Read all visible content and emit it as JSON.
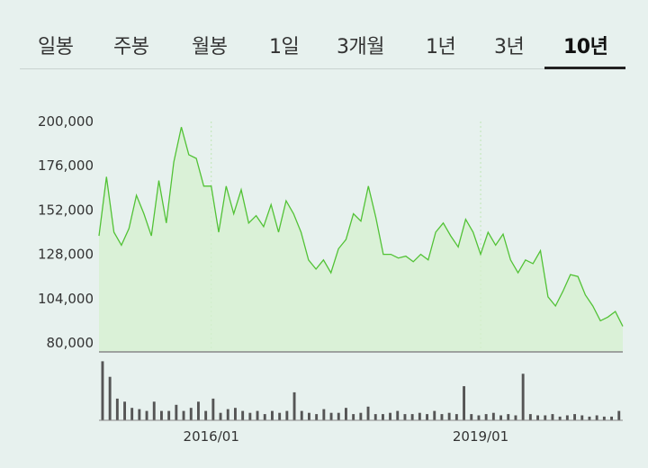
{
  "tabs": [
    {
      "label": "일봉",
      "active": false
    },
    {
      "label": "주봉",
      "active": false
    },
    {
      "label": "월봉",
      "active": false
    },
    {
      "label": "1일",
      "active": false
    },
    {
      "label": "3개월",
      "active": false
    },
    {
      "label": "1년",
      "active": false
    },
    {
      "label": "3년",
      "active": false
    },
    {
      "label": "10년",
      "active": true
    }
  ],
  "colors": {
    "background": "#e7f1ee",
    "line": "#52c236",
    "area_fill": "#d6f0cf",
    "volume_bar": "#555555",
    "grid": "#bfe6b5"
  },
  "chart_data": {
    "type": "area",
    "ylim": [
      80000,
      200000
    ],
    "y_ticks": [
      "200,000",
      "176,000",
      "152,000",
      "128,000",
      "104,000",
      "80,000"
    ],
    "x_ticks": [
      "2016/01",
      "2019/01"
    ],
    "grid": "dashed vertical at year marks",
    "price": [
      [
        "2014/10",
        138000
      ],
      [
        "2014/11",
        170000
      ],
      [
        "2014/12",
        140000
      ],
      [
        "2015/01",
        133000
      ],
      [
        "2015/02",
        142000
      ],
      [
        "2015/03",
        160000
      ],
      [
        "2015/04",
        150000
      ],
      [
        "2015/05",
        138000
      ],
      [
        "2015/06",
        168000
      ],
      [
        "2015/07",
        145000
      ],
      [
        "2015/08",
        178000
      ],
      [
        "2015/09",
        197000
      ],
      [
        "2015/10",
        182000
      ],
      [
        "2015/11",
        180000
      ],
      [
        "2015/12",
        165000
      ],
      [
        "2016/01",
        165000
      ],
      [
        "2016/02",
        140000
      ],
      [
        "2016/03",
        165000
      ],
      [
        "2016/04",
        150000
      ],
      [
        "2016/05",
        163000
      ],
      [
        "2016/06",
        145000
      ],
      [
        "2016/07",
        149000
      ],
      [
        "2016/08",
        143000
      ],
      [
        "2016/09",
        155000
      ],
      [
        "2016/10",
        140000
      ],
      [
        "2016/11",
        157000
      ],
      [
        "2016/12",
        150000
      ],
      [
        "2017/01",
        140000
      ],
      [
        "2017/02",
        125000
      ],
      [
        "2017/03",
        120000
      ],
      [
        "2017/04",
        125000
      ],
      [
        "2017/05",
        118000
      ],
      [
        "2017/06",
        131000
      ],
      [
        "2017/07",
        136000
      ],
      [
        "2017/08",
        150000
      ],
      [
        "2017/09",
        146000
      ],
      [
        "2017/10",
        165000
      ],
      [
        "2017/11",
        148000
      ],
      [
        "2017/12",
        128000
      ],
      [
        "2018/01",
        128000
      ],
      [
        "2018/02",
        126000
      ],
      [
        "2018/03",
        127000
      ],
      [
        "2018/04",
        124000
      ],
      [
        "2018/05",
        128000
      ],
      [
        "2018/06",
        125000
      ],
      [
        "2018/07",
        140000
      ],
      [
        "2018/08",
        145000
      ],
      [
        "2018/09",
        138000
      ],
      [
        "2018/10",
        132000
      ],
      [
        "2018/11",
        147000
      ],
      [
        "2018/12",
        140000
      ],
      [
        "2019/01",
        128000
      ],
      [
        "2019/02",
        140000
      ],
      [
        "2019/03",
        133000
      ],
      [
        "2019/04",
        139000
      ],
      [
        "2019/05",
        125000
      ],
      [
        "2019/06",
        118000
      ],
      [
        "2019/07",
        125000
      ],
      [
        "2019/08",
        123000
      ],
      [
        "2019/09",
        130000
      ],
      [
        "2019/10",
        105000
      ],
      [
        "2019/11",
        100000
      ],
      [
        "2019/12",
        108000
      ],
      [
        "2020/01",
        117000
      ],
      [
        "2020/02",
        116000
      ],
      [
        "2020/03",
        106000
      ],
      [
        "2020/04",
        100000
      ],
      [
        "2020/05",
        92000
      ],
      [
        "2020/06",
        94000
      ],
      [
        "2020/07",
        97000
      ],
      [
        "2020/08",
        89000
      ]
    ],
    "volume_relative": [
      0.95,
      0.7,
      0.35,
      0.3,
      0.2,
      0.18,
      0.15,
      0.3,
      0.15,
      0.15,
      0.25,
      0.15,
      0.2,
      0.3,
      0.15,
      0.35,
      0.12,
      0.18,
      0.2,
      0.15,
      0.12,
      0.15,
      0.1,
      0.15,
      0.12,
      0.15,
      0.45,
      0.15,
      0.12,
      0.1,
      0.18,
      0.12,
      0.12,
      0.2,
      0.1,
      0.12,
      0.22,
      0.1,
      0.1,
      0.12,
      0.15,
      0.1,
      0.1,
      0.12,
      0.1,
      0.15,
      0.1,
      0.12,
      0.1,
      0.55,
      0.1,
      0.08,
      0.1,
      0.12,
      0.08,
      0.1,
      0.08,
      0.75,
      0.1,
      0.08,
      0.08,
      0.1,
      0.06,
      0.08,
      0.1,
      0.08,
      0.06,
      0.08,
      0.06,
      0.06,
      0.15
    ]
  }
}
